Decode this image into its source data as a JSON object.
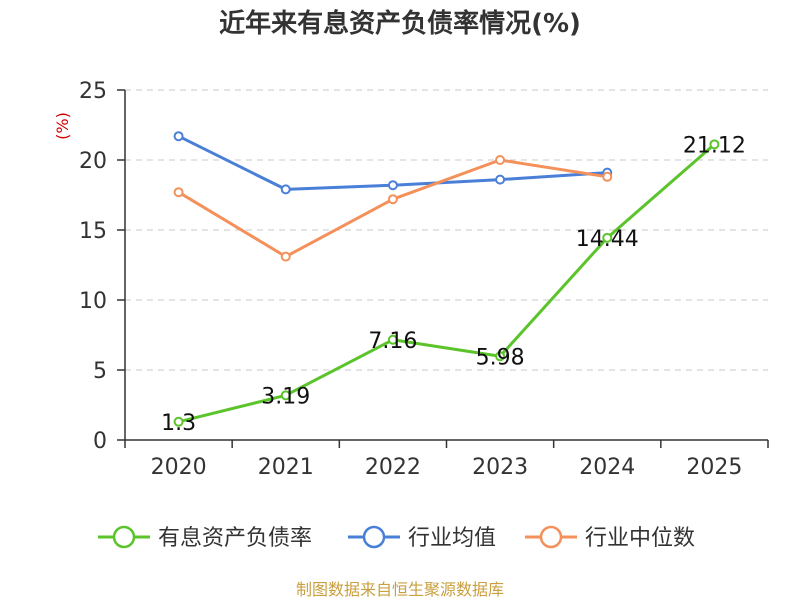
{
  "chart_data": {
    "type": "line",
    "title": "近年来有息资产负债率情况(%)",
    "ylabel": "(%)",
    "categories": [
      "2020",
      "2021",
      "2022",
      "2023",
      "2024",
      "2025"
    ],
    "ylim": [
      0,
      25
    ],
    "yticks": [
      "0",
      "5",
      "10",
      "15",
      "20",
      "25"
    ],
    "grid": true,
    "legend_position": "bottom",
    "series": [
      {
        "name": "有息资产负债率",
        "color": "#5cc42b",
        "values": [
          1.3,
          3.19,
          7.16,
          5.98,
          14.44,
          21.12
        ],
        "labels": [
          "1.3",
          "3.19",
          "7.16",
          "5.98",
          "14.44",
          "21.12"
        ]
      },
      {
        "name": "行业均值",
        "color": "#4a7fd8",
        "values": [
          21.7,
          17.9,
          18.2,
          18.6,
          19.1,
          null
        ]
      },
      {
        "name": "行业中位数",
        "color": "#f4905a",
        "values": [
          17.7,
          13.1,
          17.2,
          20.0,
          18.8,
          null
        ]
      }
    ]
  },
  "source": "制图数据来自恒生聚源数据库"
}
